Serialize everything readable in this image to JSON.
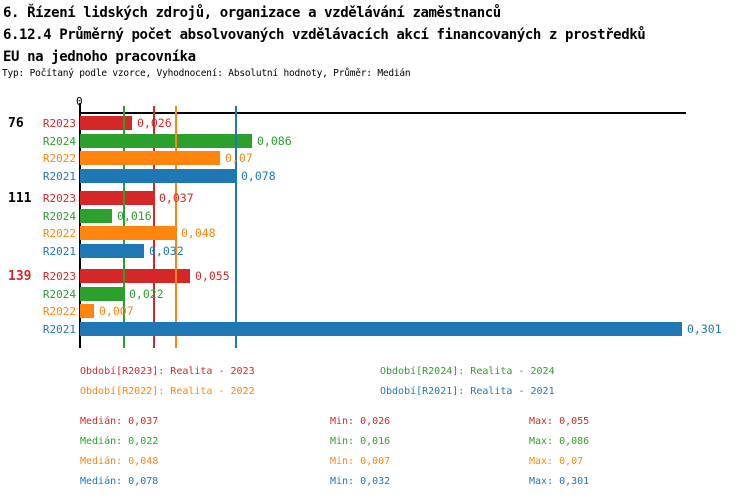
{
  "header": {
    "title_line1": "6. Řízení lidských zdrojů, organizace a vzdělávání zaměstnanců",
    "title_line2": "6.12.4 Průměrný počet absolvovaných vzdělávacích akcí financovaných z prostředků",
    "title_line3": "EU na jednoho pracovníka",
    "meta": "Typ: Počítaný podle vzorce, Vyhodnocení: Absolutní hodnoty, Průměr: Medián"
  },
  "colors": {
    "R2023": "#d62728",
    "R2024": "#2ca02c",
    "R2022": "#ff850e",
    "R2021": "#1f77b4",
    "axis": "#000000"
  },
  "chart_data": {
    "type": "bar",
    "orientation": "horizontal",
    "zero_label": "0",
    "value_axis_range": [
      0,
      0.303
    ],
    "grid": "median-lines-only",
    "series_order": [
      "R2023",
      "R2024",
      "R2022",
      "R2021"
    ],
    "groups": [
      {
        "label": "76",
        "label_color": "#000000",
        "bars": [
          {
            "series": "R2023",
            "value": 0.026,
            "value_label": "0,026"
          },
          {
            "series": "R2024",
            "value": 0.086,
            "value_label": "0,086"
          },
          {
            "series": "R2022",
            "value": 0.07,
            "value_label": "0,07"
          },
          {
            "series": "R2021",
            "value": 0.078,
            "value_label": "0,078"
          }
        ]
      },
      {
        "label": "111",
        "label_color": "#000000",
        "bars": [
          {
            "series": "R2023",
            "value": 0.037,
            "value_label": "0,037"
          },
          {
            "series": "R2024",
            "value": 0.016,
            "value_label": "0,016"
          },
          {
            "series": "R2022",
            "value": 0.048,
            "value_label": "0,048"
          },
          {
            "series": "R2021",
            "value": 0.032,
            "value_label": "0,032"
          }
        ]
      },
      {
        "label": "139",
        "label_color": "#d62728",
        "bars": [
          {
            "series": "R2023",
            "value": 0.055,
            "value_label": "0,055"
          },
          {
            "series": "R2024",
            "value": 0.022,
            "value_label": "0,022"
          },
          {
            "series": "R2022",
            "value": 0.007,
            "value_label": "0,007"
          },
          {
            "series": "R2021",
            "value": 0.301,
            "value_label": "0,301"
          }
        ]
      }
    ],
    "medians": [
      {
        "series": "R2023",
        "value": 0.037
      },
      {
        "series": "R2024",
        "value": 0.022
      },
      {
        "series": "R2022",
        "value": 0.048
      },
      {
        "series": "R2021",
        "value": 0.078
      }
    ],
    "legend": [
      {
        "series": "R2023",
        "label": "Období[R2023]: Realita - 2023"
      },
      {
        "series": "R2024",
        "label": "Období[R2024]: Realita - 2024"
      },
      {
        "series": "R2022",
        "label": "Období[R2022]: Realita - 2022"
      },
      {
        "series": "R2021",
        "label": "Období[R2021]: Realita - 2021"
      }
    ],
    "stats": [
      {
        "series": "R2023",
        "median": "Medián: 0,037",
        "min": "Min: 0,026",
        "max": "Max: 0,055"
      },
      {
        "series": "R2024",
        "median": "Medián: 0,022",
        "min": "Min: 0,016",
        "max": "Max: 0,086"
      },
      {
        "series": "R2022",
        "median": "Medián: 0,048",
        "min": "Min: 0,007",
        "max": "Max: 0,07"
      },
      {
        "series": "R2021",
        "median": "Medián: 0,078",
        "min": "Min: 0,032",
        "max": "Max: 0,301"
      }
    ]
  }
}
